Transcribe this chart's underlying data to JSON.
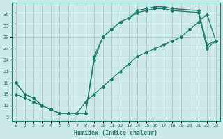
{
  "xlabel": "Humidex (Indice chaleur)",
  "xlim": [
    -0.5,
    23.5
  ],
  "ylim": [
    8,
    39
  ],
  "yticks": [
    9,
    12,
    15,
    18,
    21,
    24,
    27,
    30,
    33,
    36
  ],
  "xticks": [
    0,
    1,
    2,
    3,
    4,
    5,
    6,
    7,
    8,
    9,
    10,
    11,
    12,
    13,
    14,
    15,
    16,
    17,
    18,
    19,
    20,
    21,
    22,
    23
  ],
  "bg_color": "#cde8e8",
  "grid_color": "#a8c8c8",
  "line_color": "#1a7a6e",
  "curves": [
    {
      "x": [
        0,
        1,
        2,
        3,
        4,
        5,
        6,
        7,
        8,
        9,
        10,
        11,
        12,
        13,
        14,
        15,
        16,
        17,
        18,
        21,
        22,
        23
      ],
      "y": [
        18,
        15,
        14,
        12,
        11,
        10,
        10,
        10,
        10,
        25,
        30,
        32,
        34,
        35,
        37,
        37.5,
        38,
        38,
        37.5,
        37,
        28,
        29
      ]
    },
    {
      "x": [
        0,
        1,
        2,
        3,
        4,
        5,
        6,
        7,
        8,
        9,
        10,
        11,
        12,
        13,
        14,
        15,
        16,
        17,
        18,
        21,
        22,
        23
      ],
      "y": [
        18,
        15,
        14,
        12,
        11,
        10,
        10,
        10,
        10,
        24,
        30,
        32,
        34,
        35,
        36.5,
        37,
        37.5,
        37.5,
        37,
        36.5,
        27,
        29
      ]
    },
    {
      "x": [
        0,
        1,
        2,
        3,
        4,
        5,
        6,
        7,
        8,
        9,
        10,
        11,
        12,
        13,
        14,
        15,
        16,
        17,
        18,
        19,
        20,
        21,
        22,
        23
      ],
      "y": [
        15,
        14,
        13,
        12,
        11,
        10,
        10,
        10,
        13,
        15,
        17,
        19,
        21,
        23,
        25,
        26,
        27,
        28,
        29,
        30,
        32,
        34,
        36,
        29
      ]
    }
  ]
}
